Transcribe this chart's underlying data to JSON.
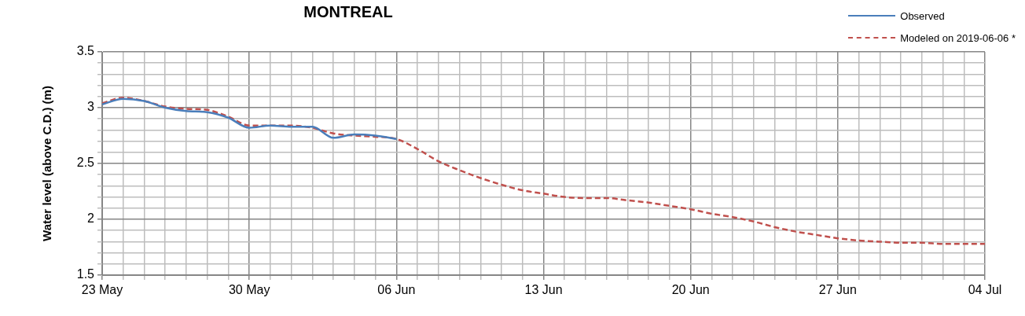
{
  "chart_data": {
    "type": "line",
    "title": "MONTREAL",
    "ylabel": "Water level (above C.D.) (m)",
    "x": [
      "2019-05-23",
      "2019-05-24",
      "2019-05-25",
      "2019-05-26",
      "2019-05-27",
      "2019-05-28",
      "2019-05-29",
      "2019-05-30",
      "2019-05-31",
      "2019-06-01",
      "2019-06-02",
      "2019-06-03",
      "2019-06-04",
      "2019-06-05",
      "2019-06-06",
      "2019-06-07",
      "2019-06-08",
      "2019-06-09",
      "2019-06-10",
      "2019-06-11",
      "2019-06-12",
      "2019-06-13",
      "2019-06-14",
      "2019-06-15",
      "2019-06-16",
      "2019-06-17",
      "2019-06-18",
      "2019-06-19",
      "2019-06-20",
      "2019-06-21",
      "2019-06-22",
      "2019-06-23",
      "2019-06-24",
      "2019-06-25",
      "2019-06-26",
      "2019-06-27",
      "2019-06-28",
      "2019-06-29",
      "2019-06-30",
      "2019-07-01",
      "2019-07-02",
      "2019-07-03",
      "2019-07-04"
    ],
    "series": [
      {
        "name": "Observed",
        "color": "#4a7ebb",
        "line_style": "solid",
        "values": [
          3.03,
          3.08,
          3.06,
          3.0,
          2.97,
          2.96,
          2.91,
          2.82,
          2.84,
          2.83,
          2.83,
          2.73,
          2.76,
          2.75,
          2.72,
          null,
          null,
          null,
          null,
          null,
          null,
          null,
          null,
          null,
          null,
          null,
          null,
          null,
          null,
          null,
          null,
          null,
          null,
          null,
          null,
          null,
          null,
          null,
          null,
          null,
          null,
          null,
          null
        ]
      },
      {
        "name": "Modeled on 2019-06-06 *",
        "color": "#c0504d",
        "line_style": "dashed",
        "values": [
          3.04,
          3.09,
          3.06,
          3.01,
          2.99,
          2.98,
          2.92,
          2.84,
          2.84,
          2.84,
          2.82,
          2.77,
          2.75,
          2.74,
          2.72,
          2.63,
          2.52,
          2.44,
          2.37,
          2.31,
          2.26,
          2.23,
          2.2,
          2.19,
          2.19,
          2.17,
          2.15,
          2.12,
          2.09,
          2.05,
          2.02,
          1.98,
          1.93,
          1.89,
          1.86,
          1.83,
          1.81,
          1.8,
          1.79,
          1.79,
          1.78,
          1.78,
          1.78
        ]
      }
    ],
    "xlim": [
      "2019-05-23",
      "2019-07-04"
    ],
    "xticks": [
      {
        "value": "2019-05-23",
        "label": "23 May"
      },
      {
        "value": "2019-05-24",
        "label": null
      },
      {
        "value": "2019-05-25",
        "label": null
      },
      {
        "value": "2019-05-26",
        "label": null
      },
      {
        "value": "2019-05-27",
        "label": null
      },
      {
        "value": "2019-05-28",
        "label": null
      },
      {
        "value": "2019-05-29",
        "label": null
      },
      {
        "value": "2019-05-30",
        "label": "30 May"
      },
      {
        "value": "2019-05-31",
        "label": null
      },
      {
        "value": "2019-06-01",
        "label": null
      },
      {
        "value": "2019-06-02",
        "label": null
      },
      {
        "value": "2019-06-03",
        "label": null
      },
      {
        "value": "2019-06-04",
        "label": null
      },
      {
        "value": "2019-06-05",
        "label": null
      },
      {
        "value": "2019-06-06",
        "label": "06 Jun"
      },
      {
        "value": "2019-06-07",
        "label": null
      },
      {
        "value": "2019-06-08",
        "label": null
      },
      {
        "value": "2019-06-09",
        "label": null
      },
      {
        "value": "2019-06-10",
        "label": null
      },
      {
        "value": "2019-06-11",
        "label": null
      },
      {
        "value": "2019-06-12",
        "label": null
      },
      {
        "value": "2019-06-13",
        "label": "13 Jun"
      },
      {
        "value": "2019-06-14",
        "label": null
      },
      {
        "value": "2019-06-15",
        "label": null
      },
      {
        "value": "2019-06-16",
        "label": null
      },
      {
        "value": "2019-06-17",
        "label": null
      },
      {
        "value": "2019-06-18",
        "label": null
      },
      {
        "value": "2019-06-19",
        "label": null
      },
      {
        "value": "2019-06-20",
        "label": "20 Jun"
      },
      {
        "value": "2019-06-21",
        "label": null
      },
      {
        "value": "2019-06-22",
        "label": null
      },
      {
        "value": "2019-06-23",
        "label": null
      },
      {
        "value": "2019-06-24",
        "label": null
      },
      {
        "value": "2019-06-25",
        "label": null
      },
      {
        "value": "2019-06-26",
        "label": null
      },
      {
        "value": "2019-06-27",
        "label": "27 Jun"
      },
      {
        "value": "2019-06-28",
        "label": null
      },
      {
        "value": "2019-06-29",
        "label": null
      },
      {
        "value": "2019-06-30",
        "label": null
      },
      {
        "value": "2019-07-01",
        "label": null
      },
      {
        "value": "2019-07-02",
        "label": null
      },
      {
        "value": "2019-07-03",
        "label": null
      },
      {
        "value": "2019-07-04",
        "label": "04 Jul"
      }
    ],
    "ylim": [
      1.5,
      3.5
    ],
    "yticks": [
      1.5,
      {
        "value": 1.6,
        "label": null
      },
      {
        "value": 1.7,
        "label": null
      },
      {
        "value": 1.8,
        "label": null
      },
      {
        "value": 1.9,
        "label": null
      },
      2,
      {
        "value": 2.1,
        "label": null
      },
      {
        "value": 2.2,
        "label": null
      },
      {
        "value": 2.3,
        "label": null
      },
      {
        "value": 2.4,
        "label": null
      },
      2.5,
      {
        "value": 2.6,
        "label": null
      },
      {
        "value": 2.7,
        "label": null
      },
      {
        "value": 2.8,
        "label": null
      },
      {
        "value": 2.9,
        "label": null
      },
      3,
      {
        "value": 3.1,
        "label": null
      },
      {
        "value": 3.2,
        "label": null
      },
      {
        "value": 3.3,
        "label": null
      },
      {
        "value": 3.4,
        "label": null
      },
      3.5
    ],
    "grid": true,
    "legend": "top right",
    "marker": "none"
  }
}
